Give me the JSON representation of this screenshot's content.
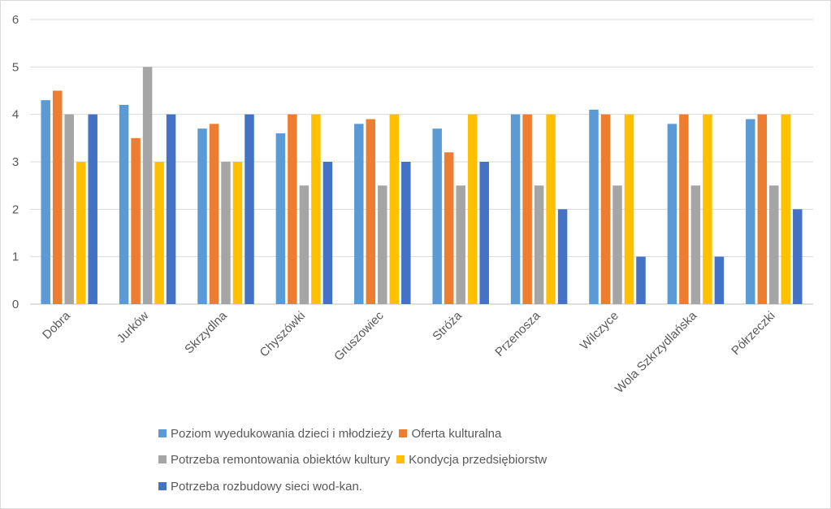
{
  "chart_data": {
    "type": "bar",
    "title": "",
    "xlabel": "",
    "ylabel": "",
    "ylim": [
      0,
      6
    ],
    "yticks": [
      "0",
      "1",
      "2",
      "3",
      "4",
      "5",
      "6"
    ],
    "grid": true,
    "legend_position": "bottom",
    "categories": [
      "Dobra",
      "Jurków",
      "Skrzydlna",
      "Chyszówki",
      "Gruszowiec",
      "Stróża",
      "Przenosza",
      "Wilczyce",
      "Wola Szkrzydlańska",
      "Półrzeczki"
    ],
    "series": [
      {
        "name": "Poziom wyedukowania dzieci i młodzieży",
        "color": "#5b9bd5",
        "values": [
          4.3,
          4.2,
          3.7,
          3.6,
          3.8,
          3.7,
          4.0,
          4.1,
          3.8,
          3.9
        ]
      },
      {
        "name": "Oferta kulturalna",
        "color": "#ed7d31",
        "values": [
          4.5,
          3.5,
          3.8,
          4.0,
          3.9,
          3.2,
          4.0,
          4.0,
          4.0,
          4.0
        ]
      },
      {
        "name": "Potrzeba remontowania obiektów kultury",
        "color": "#a5a5a5",
        "values": [
          4.0,
          5.0,
          3.0,
          2.5,
          2.5,
          2.5,
          2.5,
          2.5,
          2.5,
          2.5
        ]
      },
      {
        "name": "Kondycja przedsiębiorstw",
        "color": "#ffc000",
        "values": [
          3.0,
          3.0,
          3.0,
          4.0,
          4.0,
          4.0,
          4.0,
          4.0,
          4.0,
          4.0
        ]
      },
      {
        "name": "Potrzeba rozbudowy sieci wod-kan.",
        "color": "#4472c4",
        "values": [
          4.0,
          4.0,
          4.0,
          3.0,
          3.0,
          3.0,
          2.0,
          1.0,
          1.0,
          2.0
        ]
      }
    ]
  }
}
